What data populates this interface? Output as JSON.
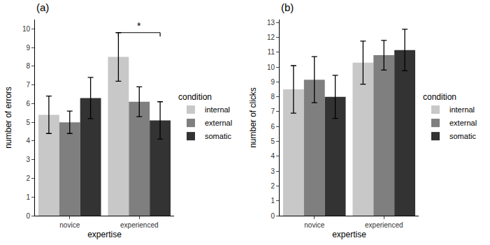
{
  "chart_data": [
    {
      "type": "bar",
      "title": "(a)",
      "x_label": "expertise",
      "y_label": "number of errors",
      "legend_title": "condition",
      "legend": "right",
      "grid": false,
      "categories": [
        "novice",
        "experienced"
      ],
      "series": [
        {
          "name": "internal",
          "color": "#c8c8c8",
          "values": [
            5.4,
            8.5
          ],
          "errors": [
            1.0,
            1.3
          ]
        },
        {
          "name": "external",
          "color": "#7f7f7f",
          "values": [
            5.0,
            6.1
          ],
          "errors": [
            0.6,
            0.8
          ]
        },
        {
          "name": "somatic",
          "color": "#333333",
          "values": [
            6.3,
            5.1
          ],
          "errors": [
            1.1,
            1.0
          ]
        }
      ],
      "ylim": [
        0,
        10.5
      ],
      "yticks": [
        0,
        1,
        2,
        3,
        4,
        5,
        6,
        7,
        8,
        9,
        10
      ],
      "annotations": [
        {
          "text": "*",
          "category": "experienced",
          "series": [
            "internal",
            "somatic"
          ]
        }
      ]
    },
    {
      "type": "bar",
      "title": "(b)",
      "x_label": "expertise",
      "y_label": "number of clicks",
      "legend_title": "condition",
      "legend": "right",
      "grid": false,
      "categories": [
        "novice",
        "experienced"
      ],
      "series": [
        {
          "name": "internal",
          "color": "#c8c8c8",
          "values": [
            8.5,
            10.3
          ],
          "errors": [
            1.6,
            1.45
          ]
        },
        {
          "name": "external",
          "color": "#7f7f7f",
          "values": [
            9.15,
            10.8
          ],
          "errors": [
            1.55,
            1.0
          ]
        },
        {
          "name": "somatic",
          "color": "#333333",
          "values": [
            8.0,
            11.15
          ],
          "errors": [
            1.45,
            1.4
          ]
        }
      ],
      "ylim": [
        0,
        13.2
      ],
      "yticks": [
        0,
        1,
        2,
        3,
        4,
        5,
        6,
        7,
        8,
        9,
        10,
        11,
        12,
        13
      ]
    }
  ]
}
